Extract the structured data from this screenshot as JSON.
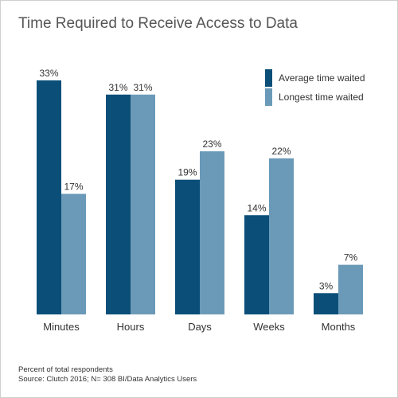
{
  "title": "Time Required to Receive Access to Data",
  "legend": {
    "items": [
      {
        "label": "Average time waited",
        "color": "#0b4f79"
      },
      {
        "label": "Longest time waited",
        "color": "#6b9ab8"
      }
    ]
  },
  "footnotes": {
    "note": "Percent of total respondents",
    "source": "Source: Clutch 2016; N= 308 BI/Data Analytics Users"
  },
  "chart_data": {
    "type": "bar",
    "title": "Time Required to Receive Access to Data",
    "xlabel": "",
    "ylabel": "",
    "ylim": [
      0,
      33
    ],
    "grid": false,
    "legend_position": "top-right",
    "categories": [
      "Minutes",
      "Hours",
      "Days",
      "Weeks",
      "Months"
    ],
    "series": [
      {
        "name": "Average time waited",
        "color": "#0b4f79",
        "values": [
          33,
          31,
          19,
          14,
          3
        ],
        "labels": [
          "33%",
          "31%",
          "19%",
          "14%",
          "3%"
        ]
      },
      {
        "name": "Longest time waited",
        "color": "#6b9ab8",
        "values": [
          17,
          31,
          23,
          22,
          7
        ],
        "labels": [
          "17%",
          "31%",
          "23%",
          "22%",
          "7%"
        ]
      }
    ]
  }
}
